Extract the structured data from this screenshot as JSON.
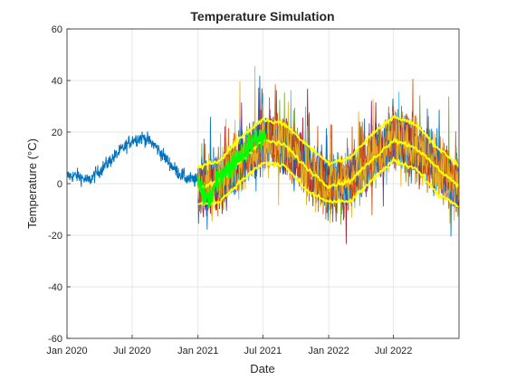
{
  "chart_data": {
    "type": "line",
    "title": "Temperature Simulation",
    "xlabel": "Date",
    "ylabel": "Temperature (°C)",
    "xlim": [
      "2020-01-01",
      "2022-12-31"
    ],
    "ylim": [
      -60,
      60
    ],
    "grid": true,
    "legend": "none",
    "x_ticks": [
      {
        "date": "2020-01-01",
        "label": "Jan 2020"
      },
      {
        "date": "2020-07-01",
        "label": "Jul 2020"
      },
      {
        "date": "2021-01-01",
        "label": "Jan 2021"
      },
      {
        "date": "2021-07-01",
        "label": "Jul 2021"
      },
      {
        "date": "2022-01-01",
        "label": "Jan 2022"
      },
      {
        "date": "2022-07-01",
        "label": "Jul 2022"
      }
    ],
    "y_ticks": [
      -60,
      -40,
      -20,
      0,
      20,
      40,
      60
    ],
    "historical": {
      "color": "#0072BD",
      "x": [
        "2020-01-01",
        "2020-02-01",
        "2020-03-01",
        "2020-04-01",
        "2020-05-01",
        "2020-06-01",
        "2020-07-01",
        "2020-08-01",
        "2020-09-01",
        "2020-10-01",
        "2020-11-01",
        "2020-12-01",
        "2020-12-31"
      ],
      "y": [
        3,
        3,
        1,
        5,
        9,
        13,
        17,
        18,
        15,
        10,
        5,
        2,
        1
      ]
    },
    "simulations": {
      "start": "2021-01-01",
      "end": "2022-12-31",
      "colors": [
        "#0072BD",
        "#D95319",
        "#EDB120",
        "#7E2F8E",
        "#77AC30",
        "#4DBEEE",
        "#A2142F"
      ],
      "count": 10
    },
    "envelope": {
      "color": "#FFFF00",
      "x": [
        "2021-01-01",
        "2021-03-01",
        "2021-05-01",
        "2021-07-01",
        "2021-09-01",
        "2021-11-01",
        "2022-01-01",
        "2022-03-01",
        "2022-05-01",
        "2022-07-01",
        "2022-09-01",
        "2022-11-01",
        "2022-12-31"
      ],
      "upper": [
        6,
        9,
        18,
        25,
        23,
        15,
        8,
        10,
        19,
        26,
        23,
        14,
        7
      ],
      "mean": [
        -2,
        1,
        9,
        17,
        15,
        6,
        -1,
        1,
        9,
        17,
        14,
        6,
        -1
      ],
      "lower": [
        -8,
        -7,
        1,
        8,
        7,
        -3,
        -7,
        -7,
        1,
        9,
        6,
        -4,
        -9
      ]
    },
    "observed": {
      "color": "#00FF00",
      "x": [
        "2021-01-01",
        "2021-01-15",
        "2021-02-01",
        "2021-02-15",
        "2021-03-01",
        "2021-03-15",
        "2021-04-01",
        "2021-04-15",
        "2021-05-01",
        "2021-05-15",
        "2021-06-01",
        "2021-06-15",
        "2021-07-01",
        "2021-07-10"
      ],
      "y": [
        0,
        -4,
        -6,
        -2,
        3,
        5,
        6,
        9,
        12,
        13,
        16,
        18,
        17,
        19
      ]
    }
  }
}
